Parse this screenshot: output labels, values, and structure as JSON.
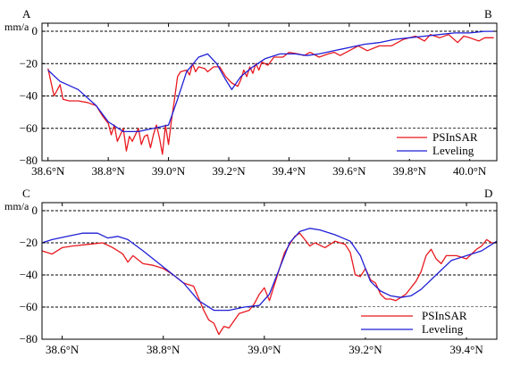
{
  "chart_data": [
    {
      "type": "line",
      "corner_left": "A",
      "corner_right": "B",
      "ylabel": "mm/a",
      "xlim": [
        38.58,
        40.09
      ],
      "ylim": [
        -80,
        5
      ],
      "x_ticks": [
        38.6,
        38.8,
        39.0,
        39.2,
        39.4,
        39.6,
        39.8,
        40.0
      ],
      "x_tick_labels": [
        "38.6°N",
        "38.8°N",
        "39.0°N",
        "39.2°N",
        "39.4°N",
        "39.6°N",
        "39.8°N",
        "40.0°N"
      ],
      "y_ticks": [
        0,
        -20,
        -40,
        -60,
        -80
      ],
      "y_tick_labels": [
        "0",
        "−20",
        "−40",
        "−60",
        "−80"
      ],
      "grid": "dashed horizontal lines at y ticks",
      "legend": "bottom-right",
      "series": [
        {
          "name": "PSInSAR",
          "color": "#e8191f",
          "points": [
            [
              38.6,
              -23
            ],
            [
              38.62,
              -40
            ],
            [
              38.64,
              -33
            ],
            [
              38.65,
              -42
            ],
            [
              38.67,
              -43
            ],
            [
              38.7,
              -43
            ],
            [
              38.73,
              -44
            ],
            [
              38.76,
              -46
            ],
            [
              38.78,
              -52
            ],
            [
              38.8,
              -57
            ],
            [
              38.81,
              -64
            ],
            [
              38.82,
              -58
            ],
            [
              38.83,
              -68
            ],
            [
              38.85,
              -60
            ],
            [
              38.86,
              -74
            ],
            [
              38.87,
              -65
            ],
            [
              38.88,
              -68
            ],
            [
              38.9,
              -60
            ],
            [
              38.91,
              -70
            ],
            [
              38.92,
              -65
            ],
            [
              38.93,
              -64
            ],
            [
              38.94,
              -72
            ],
            [
              38.95,
              -64
            ],
            [
              38.96,
              -58
            ],
            [
              38.97,
              -66
            ],
            [
              38.98,
              -76
            ],
            [
              38.99,
              -58
            ],
            [
              39.0,
              -70
            ],
            [
              39.01,
              -55
            ],
            [
              39.02,
              -42
            ],
            [
              39.03,
              -28
            ],
            [
              39.04,
              -25
            ],
            [
              39.06,
              -24
            ],
            [
              39.07,
              -27
            ],
            [
              39.08,
              -20
            ],
            [
              39.09,
              -25
            ],
            [
              39.1,
              -22
            ],
            [
              39.12,
              -23
            ],
            [
              39.13,
              -25
            ],
            [
              39.15,
              -22
            ],
            [
              39.17,
              -22
            ],
            [
              39.19,
              -28
            ],
            [
              39.21,
              -32
            ],
            [
              39.23,
              -34
            ],
            [
              39.24,
              -30
            ],
            [
              39.25,
              -24
            ],
            [
              39.26,
              -28
            ],
            [
              39.27,
              -22
            ],
            [
              39.28,
              -26
            ],
            [
              39.29,
              -20
            ],
            [
              39.3,
              -24
            ],
            [
              39.31,
              -19
            ],
            [
              39.33,
              -21
            ],
            [
              39.35,
              -16
            ],
            [
              39.38,
              -16
            ],
            [
              39.4,
              -13
            ],
            [
              39.43,
              -14
            ],
            [
              39.45,
              -15
            ],
            [
              39.47,
              -13
            ],
            [
              39.5,
              -16
            ],
            [
              39.53,
              -14
            ],
            [
              39.55,
              -13
            ],
            [
              39.57,
              -15
            ],
            [
              39.6,
              -12
            ],
            [
              39.63,
              -9
            ],
            [
              39.66,
              -12
            ],
            [
              39.7,
              -9
            ],
            [
              39.74,
              -9
            ],
            [
              39.78,
              -5
            ],
            [
              39.82,
              -3
            ],
            [
              39.85,
              -6
            ],
            [
              39.87,
              -2
            ],
            [
              39.9,
              -4
            ],
            [
              39.93,
              -2
            ],
            [
              39.96,
              -7
            ],
            [
              39.98,
              -3
            ],
            [
              40.0,
              -4
            ],
            [
              40.03,
              -6
            ],
            [
              40.05,
              -4
            ],
            [
              40.08,
              -4
            ]
          ]
        },
        {
          "name": "Leveling",
          "color": "#1f1fd6",
          "points": [
            [
              38.6,
              -24
            ],
            [
              38.64,
              -31
            ],
            [
              38.7,
              -36
            ],
            [
              38.76,
              -46
            ],
            [
              38.8,
              -56
            ],
            [
              38.85,
              -62
            ],
            [
              38.9,
              -62
            ],
            [
              38.95,
              -60
            ],
            [
              39.0,
              -58
            ],
            [
              39.03,
              -42
            ],
            [
              39.06,
              -25
            ],
            [
              39.1,
              -16
            ],
            [
              39.13,
              -14
            ],
            [
              39.16,
              -20
            ],
            [
              39.19,
              -30
            ],
            [
              39.21,
              -36
            ],
            [
              39.24,
              -28
            ],
            [
              39.28,
              -22
            ],
            [
              39.32,
              -17
            ],
            [
              39.37,
              -14
            ],
            [
              39.42,
              -14
            ],
            [
              39.46,
              -15
            ],
            [
              39.5,
              -14
            ],
            [
              39.55,
              -12
            ],
            [
              39.6,
              -10
            ],
            [
              39.65,
              -8
            ],
            [
              39.7,
              -7
            ],
            [
              39.75,
              -5
            ],
            [
              39.8,
              -4
            ],
            [
              39.85,
              -3
            ],
            [
              39.9,
              -2
            ],
            [
              39.95,
              -1
            ],
            [
              40.0,
              -1
            ],
            [
              40.05,
              0
            ],
            [
              40.08,
              0
            ]
          ]
        }
      ]
    },
    {
      "type": "line",
      "corner_left": "C",
      "corner_right": "D",
      "ylabel": "mm/a",
      "xlim": [
        38.56,
        39.46
      ],
      "ylim": [
        -80,
        5
      ],
      "x_ticks": [
        38.6,
        38.8,
        39.0,
        39.2,
        39.4
      ],
      "x_tick_labels": [
        "38.6°N",
        "38.8°N",
        "39.0°N",
        "39.2°N",
        "39.4°N"
      ],
      "y_ticks": [
        0,
        -20,
        -40,
        -60,
        -80
      ],
      "y_tick_labels": [
        "0",
        "−20",
        "−40",
        "−60",
        "−80"
      ],
      "grid": "dashed horizontal lines at y ticks",
      "legend": "bottom-right",
      "series": [
        {
          "name": "PSInSAR",
          "color": "#e8191f",
          "points": [
            [
              38.56,
              -25
            ],
            [
              38.58,
              -27
            ],
            [
              38.6,
              -23
            ],
            [
              38.62,
              -22
            ],
            [
              38.65,
              -21
            ],
            [
              38.68,
              -20
            ],
            [
              38.7,
              -23
            ],
            [
              38.72,
              -27
            ],
            [
              38.73,
              -32
            ],
            [
              38.74,
              -28
            ],
            [
              38.76,
              -33
            ],
            [
              38.78,
              -34
            ],
            [
              38.8,
              -36
            ],
            [
              38.82,
              -40
            ],
            [
              38.84,
              -45
            ],
            [
              38.86,
              -47
            ],
            [
              38.88,
              -62
            ],
            [
              38.89,
              -68
            ],
            [
              38.9,
              -70
            ],
            [
              38.91,
              -77
            ],
            [
              38.92,
              -72
            ],
            [
              38.93,
              -73
            ],
            [
              38.95,
              -64
            ],
            [
              38.97,
              -62
            ],
            [
              38.98,
              -58
            ],
            [
              38.99,
              -52
            ],
            [
              39.0,
              -48
            ],
            [
              39.01,
              -56
            ],
            [
              39.02,
              -46
            ],
            [
              39.03,
              -36
            ],
            [
              39.04,
              -26
            ],
            [
              39.05,
              -21
            ],
            [
              39.06,
              -16
            ],
            [
              39.07,
              -14
            ],
            [
              39.08,
              -18
            ],
            [
              39.09,
              -22
            ],
            [
              39.1,
              -20
            ],
            [
              39.12,
              -23
            ],
            [
              39.14,
              -19
            ],
            [
              39.16,
              -21
            ],
            [
              39.17,
              -26
            ],
            [
              39.18,
              -40
            ],
            [
              39.19,
              -41
            ],
            [
              39.2,
              -36
            ],
            [
              39.21,
              -43
            ],
            [
              39.22,
              -45
            ],
            [
              39.23,
              -52
            ],
            [
              39.24,
              -55
            ],
            [
              39.25,
              -55
            ],
            [
              39.26,
              -56
            ],
            [
              39.28,
              -52
            ],
            [
              39.3,
              -44
            ],
            [
              39.31,
              -38
            ],
            [
              39.32,
              -28
            ],
            [
              39.33,
              -24
            ],
            [
              39.34,
              -30
            ],
            [
              39.35,
              -33
            ],
            [
              39.36,
              -28
            ],
            [
              39.38,
              -28
            ],
            [
              39.4,
              -30
            ],
            [
              39.41,
              -27
            ],
            [
              39.42,
              -24
            ],
            [
              39.43,
              -22
            ],
            [
              39.44,
              -18
            ],
            [
              39.45,
              -20
            ],
            [
              39.46,
              -20
            ]
          ]
        },
        {
          "name": "Leveling",
          "color": "#1f1fd6",
          "points": [
            [
              38.56,
              -20
            ],
            [
              38.58,
              -18
            ],
            [
              38.61,
              -16
            ],
            [
              38.64,
              -14
            ],
            [
              38.67,
              -14
            ],
            [
              38.69,
              -17
            ],
            [
              38.71,
              -16
            ],
            [
              38.73,
              -18
            ],
            [
              38.76,
              -25
            ],
            [
              38.8,
              -35
            ],
            [
              38.84,
              -45
            ],
            [
              38.87,
              -56
            ],
            [
              38.9,
              -62
            ],
            [
              38.93,
              -62
            ],
            [
              38.96,
              -60
            ],
            [
              38.99,
              -59
            ],
            [
              39.01,
              -52
            ],
            [
              39.03,
              -36
            ],
            [
              39.05,
              -20
            ],
            [
              39.07,
              -13
            ],
            [
              39.09,
              -11
            ],
            [
              39.11,
              -12
            ],
            [
              39.14,
              -15
            ],
            [
              39.17,
              -19
            ],
            [
              39.19,
              -28
            ],
            [
              39.21,
              -44
            ],
            [
              39.23,
              -50
            ],
            [
              39.25,
              -53
            ],
            [
              39.27,
              -54
            ],
            [
              39.29,
              -53
            ],
            [
              39.31,
              -49
            ],
            [
              39.34,
              -40
            ],
            [
              39.37,
              -31
            ],
            [
              39.4,
              -28
            ],
            [
              39.43,
              -25
            ],
            [
              39.46,
              -19
            ]
          ]
        }
      ]
    }
  ]
}
